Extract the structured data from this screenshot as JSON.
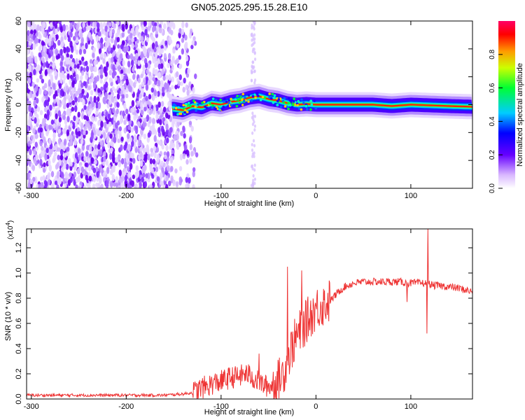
{
  "title": "GN05.2025.295.15.28.E10",
  "colors": {
    "line": "#ee3333",
    "axis": "#000000",
    "background": "#ffffff"
  },
  "chart_data": [
    {
      "type": "heatmap",
      "title": "GN05.2025.295.15.28.E10",
      "xlabel": "Height of straight line (km)",
      "ylabel": "Frequency (Hz)",
      "xlim": [
        -305,
        165
      ],
      "ylim": [
        -60,
        60
      ],
      "xticks": [
        -300,
        -200,
        -100,
        0,
        100
      ],
      "xtick_labels": [
        "-300",
        "-200",
        "-100",
        "0",
        "100"
      ],
      "yticks": [
        -60,
        -40,
        -20,
        0,
        20,
        40,
        60
      ],
      "ytick_labels": [
        "-60",
        "-40",
        "-20",
        "0",
        "20",
        "40",
        "60"
      ],
      "ridge": {
        "x": [
          -150,
          -140,
          -130,
          -120,
          -110,
          -100,
          -90,
          -80,
          -70,
          -60,
          -50,
          -40,
          -30,
          -20,
          -10,
          0,
          20,
          40,
          60,
          80,
          100,
          120,
          140,
          165
        ],
        "y": [
          -3,
          -4,
          -1,
          -2,
          1,
          0,
          2,
          3,
          5,
          6,
          4,
          3,
          1,
          0,
          0.5,
          0,
          0,
          0,
          0,
          -1,
          0,
          -0.5,
          -1,
          -1.5
        ]
      },
      "colorbar": {
        "label": "Normalized spectral amplitude",
        "range": [
          0,
          1
        ],
        "ticks": [
          0.0,
          0.2,
          0.4,
          0.6,
          0.8
        ],
        "tick_labels": [
          "0.0",
          "0.2",
          "0.4",
          "0.6",
          "0.8"
        ]
      }
    },
    {
      "type": "line",
      "xlabel": "Height of straight line (km)",
      "ylabel": "SNR (10 * v/v)",
      "y_multiplier": "(x10",
      "y_multiplier_exp": "4",
      "y_multiplier_close": ")",
      "xlim": [
        -305,
        165
      ],
      "ylim": [
        0,
        1.35
      ],
      "xticks": [
        -300,
        -200,
        -100,
        0,
        100
      ],
      "xtick_labels": [
        "-300",
        "-200",
        "-100",
        "0",
        "100"
      ],
      "yticks": [
        0.0,
        0.2,
        0.4,
        0.6,
        0.8,
        1.0,
        1.2
      ],
      "ytick_labels": [
        "0.0",
        "0.2",
        "0.4",
        "0.6",
        "0.8",
        "1.0",
        "1.2"
      ],
      "series": [
        {
          "name": "SNR",
          "x": [
            -305,
            -280,
            -250,
            -220,
            -200,
            -180,
            -160,
            -140,
            -130,
            -125,
            -120,
            -115,
            -110,
            -100,
            -90,
            -80,
            -75,
            -70,
            -65,
            -60,
            -55,
            -50,
            -45,
            -40,
            -35,
            -30,
            -25,
            -20,
            -15,
            -10,
            -5,
            0,
            5,
            10,
            15,
            20,
            25,
            30,
            40,
            50,
            60,
            70,
            80,
            90,
            95,
            100,
            110,
            115,
            120,
            125,
            130,
            140,
            150,
            160,
            165
          ],
          "y": [
            0.03,
            0.03,
            0.03,
            0.03,
            0.03,
            0.03,
            0.03,
            0.04,
            0.05,
            0.07,
            0.09,
            0.1,
            0.12,
            0.14,
            0.17,
            0.18,
            0.2,
            0.19,
            0.16,
            0.13,
            0.11,
            0.1,
            0.11,
            0.14,
            0.2,
            0.3,
            0.42,
            0.5,
            0.55,
            0.62,
            0.67,
            0.72,
            0.74,
            0.76,
            0.78,
            0.82,
            0.86,
            0.89,
            0.92,
            0.93,
            0.93,
            0.93,
            0.93,
            0.93,
            0.92,
            0.92,
            0.92,
            0.92,
            0.91,
            0.9,
            0.9,
            0.89,
            0.88,
            0.86,
            0.85
          ],
          "spikes": [
            {
              "x": -60,
              "y": 0.36
            },
            {
              "x": -30,
              "y": 1.05
            },
            {
              "x": -15,
              "y": 1.02
            },
            {
              "x": 96,
              "y": 0.77
            },
            {
              "x": 118,
              "y": 1.35
            },
            {
              "x": 117,
              "y": 0.52
            }
          ]
        }
      ]
    }
  ]
}
